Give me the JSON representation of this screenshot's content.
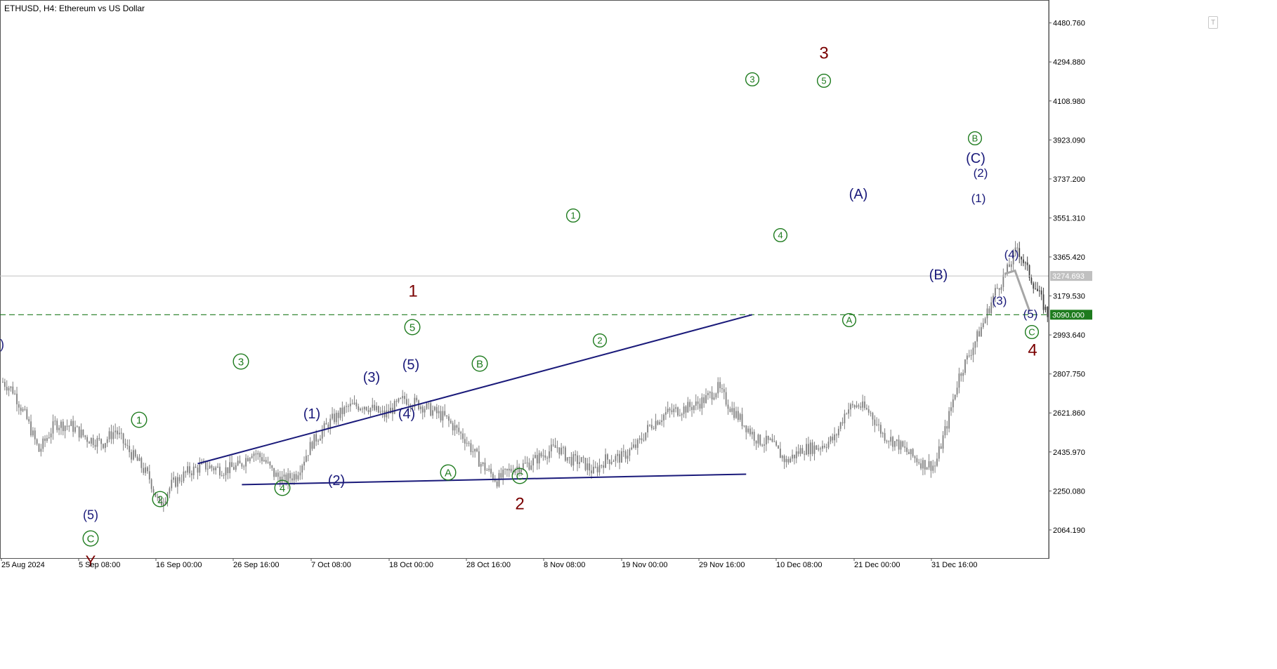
{
  "chart_title": "ETHUSD, H4:  Ethereum vs US Dollar",
  "toolbar": {
    "corner_button": "T"
  },
  "colors": {
    "candle": "#7f7f7f",
    "candle_dark": "#404040",
    "green_label": "#1e7b1e",
    "navy_label": "#1a1a7a",
    "dark_red": "#7a0000",
    "level_line": "#1e7b1e",
    "current_price_bg": "#c0c0c0",
    "trendline": "#1a1a7a",
    "forecast": "#a6a6a6"
  },
  "chart_data": {
    "type": "candlestick",
    "symbol": "ETHUSD",
    "timeframe": "H4",
    "ylim": [
      1930,
      4590
    ],
    "y_ticks": [
      "4480.760",
      "4294.880",
      "4108.980",
      "3923.090",
      "3737.200",
      "3551.310",
      "3365.420",
      "3179.530",
      "2993.640",
      "2807.750",
      "2621.860",
      "2435.970",
      "2250.080",
      "2064.190"
    ],
    "x_ticks": [
      "25 Aug 2024",
      "5 Sep 08:00",
      "16 Sep 00:00",
      "26 Sep 16:00",
      "7 Oct 08:00",
      "18 Oct 00:00",
      "28 Oct 16:00",
      "8 Nov 08:00",
      "19 Nov 00:00",
      "29 Nov 16:00",
      "10 Dec 08:00",
      "21 Dec 00:00",
      "31 Dec 16:00"
    ],
    "bar_count": 520,
    "anchors": [
      [
        0,
        2770
      ],
      [
        5,
        2730
      ],
      [
        12,
        2590
      ],
      [
        18,
        2440
      ],
      [
        26,
        2570
      ],
      [
        34,
        2560
      ],
      [
        42,
        2500
      ],
      [
        50,
        2480
      ],
      [
        56,
        2540
      ],
      [
        62,
        2450
      ],
      [
        68,
        2380
      ],
      [
        73,
        2310
      ],
      [
        78,
        2180
      ],
      [
        84,
        2280
      ],
      [
        92,
        2340
      ],
      [
        100,
        2370
      ],
      [
        110,
        2350
      ],
      [
        118,
        2370
      ],
      [
        124,
        2440
      ],
      [
        130,
        2400
      ],
      [
        135,
        2330
      ],
      [
        140,
        2300
      ],
      [
        146,
        2330
      ],
      [
        154,
        2480
      ],
      [
        164,
        2590
      ],
      [
        172,
        2650
      ],
      [
        180,
        2660
      ],
      [
        190,
        2610
      ],
      [
        200,
        2690
      ],
      [
        210,
        2650
      ],
      [
        220,
        2600
      ],
      [
        230,
        2500
      ],
      [
        238,
        2380
      ],
      [
        246,
        2300
      ],
      [
        254,
        2360
      ],
      [
        262,
        2380
      ],
      [
        270,
        2430
      ],
      [
        276,
        2460
      ],
      [
        282,
        2400
      ],
      [
        288,
        2390
      ],
      [
        294,
        2340
      ],
      [
        300,
        2400
      ],
      [
        308,
        2410
      ],
      [
        316,
        2470
      ],
      [
        322,
        2560
      ],
      [
        330,
        2620
      ],
      [
        338,
        2640
      ],
      [
        345,
        2660
      ],
      [
        350,
        2690
      ],
      [
        356,
        2740
      ],
      [
        362,
        2650
      ],
      [
        368,
        2580
      ],
      [
        376,
        2490
      ],
      [
        382,
        2480
      ],
      [
        390,
        2390
      ],
      [
        398,
        2450
      ],
      [
        406,
        2460
      ],
      [
        414,
        2500
      ],
      [
        420,
        2640
      ],
      [
        426,
        2660
      ],
      [
        432,
        2620
      ],
      [
        438,
        2520
      ],
      [
        446,
        2470
      ],
      [
        452,
        2420
      ],
      [
        458,
        2380
      ],
      [
        464,
        2370
      ],
      [
        470,
        2570
      ],
      [
        476,
        2800
      ],
      [
        482,
        2920
      ],
      [
        488,
        3050
      ],
      [
        494,
        3200
      ],
      [
        500,
        3300
      ],
      [
        505,
        3410
      ],
      [
        510,
        3300
      ],
      [
        516,
        3180
      ],
      [
        520,
        3090
      ]
    ],
    "current_price": "3274.693",
    "level": {
      "price": 3090,
      "label": "3090.000"
    },
    "trendlines": [
      {
        "from": [
          97,
          2380
        ],
        "to": [
          373,
          3090
        ]
      },
      {
        "from": [
          119,
          2280
        ],
        "to": [
          370,
          2330
        ]
      }
    ],
    "forecast_path": [
      [
        1430,
        3285
      ],
      [
        1445,
        3300
      ],
      [
        1466,
        3105
      ]
    ],
    "annotations": [
      {
        "text": "1",
        "x": 588,
        "y": 414,
        "size": 24,
        "color": "dark_red",
        "circled": false
      },
      {
        "text": "2",
        "x": 740,
        "y": 717,
        "size": 24,
        "color": "dark_red",
        "circled": false
      },
      {
        "text": "3",
        "x": 1173,
        "y": 75,
        "size": 24,
        "color": "dark_red",
        "circled": false
      },
      {
        "text": "4",
        "x": 1470,
        "y": 498,
        "size": 24,
        "color": "dark_red",
        "circled": false
      },
      {
        "text": "1",
        "x": 198,
        "y": 598,
        "size": 15,
        "color": "green_label",
        "circled": true
      },
      {
        "text": "2",
        "x": 228,
        "y": 711,
        "size": 15,
        "color": "green_label",
        "circled": true
      },
      {
        "text": "3",
        "x": 343,
        "y": 515,
        "size": 15,
        "color": "green_label",
        "circled": true
      },
      {
        "text": "4",
        "x": 402,
        "y": 695,
        "size": 15,
        "color": "green_label",
        "circled": true
      },
      {
        "text": "5",
        "x": 587,
        "y": 466,
        "size": 15,
        "color": "green_label",
        "circled": true
      },
      {
        "text": "A",
        "x": 638,
        "y": 673,
        "size": 15,
        "color": "green_label",
        "circled": true
      },
      {
        "text": "B",
        "x": 683,
        "y": 518,
        "size": 15,
        "color": "green_label",
        "circled": true
      },
      {
        "text": "C",
        "x": 740,
        "y": 678,
        "size": 15,
        "color": "green_label",
        "circled": true
      },
      {
        "text": "C",
        "x": 129,
        "y": 767,
        "size": 15,
        "color": "green_label",
        "circled": true
      },
      {
        "text": "1",
        "x": 816,
        "y": 307,
        "size": 13,
        "color": "green_label",
        "circled": true
      },
      {
        "text": "2",
        "x": 854,
        "y": 485,
        "size": 13,
        "color": "green_label",
        "circled": true
      },
      {
        "text": "3",
        "x": 1071,
        "y": 113,
        "size": 13,
        "color": "green_label",
        "circled": true
      },
      {
        "text": "4",
        "x": 1111,
        "y": 335,
        "size": 13,
        "color": "green_label",
        "circled": true
      },
      {
        "text": "5",
        "x": 1173,
        "y": 115,
        "size": 13,
        "color": "green_label",
        "circled": true
      },
      {
        "text": "A",
        "x": 1209,
        "y": 456,
        "size": 13,
        "color": "green_label",
        "circled": true
      },
      {
        "text": "B",
        "x": 1388,
        "y": 197,
        "size": 13,
        "color": "green_label",
        "circled": true
      },
      {
        "text": "C",
        "x": 1469,
        "y": 473,
        "size": 13,
        "color": "green_label",
        "circled": true
      },
      {
        "text": "(5)",
        "x": 129,
        "y": 733,
        "size": 18,
        "color": "navy_label",
        "circled": false
      },
      {
        "text": "(1)",
        "x": 444,
        "y": 589,
        "size": 20,
        "color": "navy_label",
        "circled": false
      },
      {
        "text": "(2)",
        "x": 479,
        "y": 684,
        "size": 20,
        "color": "navy_label",
        "circled": false
      },
      {
        "text": "(3)",
        "x": 529,
        "y": 537,
        "size": 20,
        "color": "navy_label",
        "circled": false
      },
      {
        "text": "(4)",
        "x": 579,
        "y": 589,
        "size": 20,
        "color": "navy_label",
        "circled": false
      },
      {
        "text": "(5)",
        "x": 585,
        "y": 519,
        "size": 20,
        "color": "navy_label",
        "circled": false
      },
      {
        "text": "(A)",
        "x": 1222,
        "y": 276,
        "size": 20,
        "color": "navy_label",
        "circled": false
      },
      {
        "text": "(B)",
        "x": 1336,
        "y": 391,
        "size": 20,
        "color": "navy_label",
        "circled": false
      },
      {
        "text": "(C)",
        "x": 1389,
        "y": 225,
        "size": 20,
        "color": "navy_label",
        "circled": false
      },
      {
        "text": "(2)",
        "x": 1396,
        "y": 246,
        "size": 17,
        "color": "navy_label",
        "circled": false
      },
      {
        "text": "(1)",
        "x": 1393,
        "y": 282,
        "size": 17,
        "color": "navy_label",
        "circled": false
      },
      {
        "text": "(4)",
        "x": 1440,
        "y": 362,
        "size": 17,
        "color": "navy_label",
        "circled": false
      },
      {
        "text": "(3)",
        "x": 1423,
        "y": 428,
        "size": 17,
        "color": "navy_label",
        "circled": false
      },
      {
        "text": "(5)",
        "x": 1467,
        "y": 447,
        "size": 17,
        "color": "navy_label",
        "circled": false
      },
      {
        "text": ")",
        "x": 3,
        "y": 490,
        "size": 18,
        "color": "navy_label",
        "circled": false
      },
      {
        "text": "Y",
        "x": 129,
        "y": 799,
        "size": 22,
        "color": "dark_red",
        "circled": false
      }
    ]
  }
}
